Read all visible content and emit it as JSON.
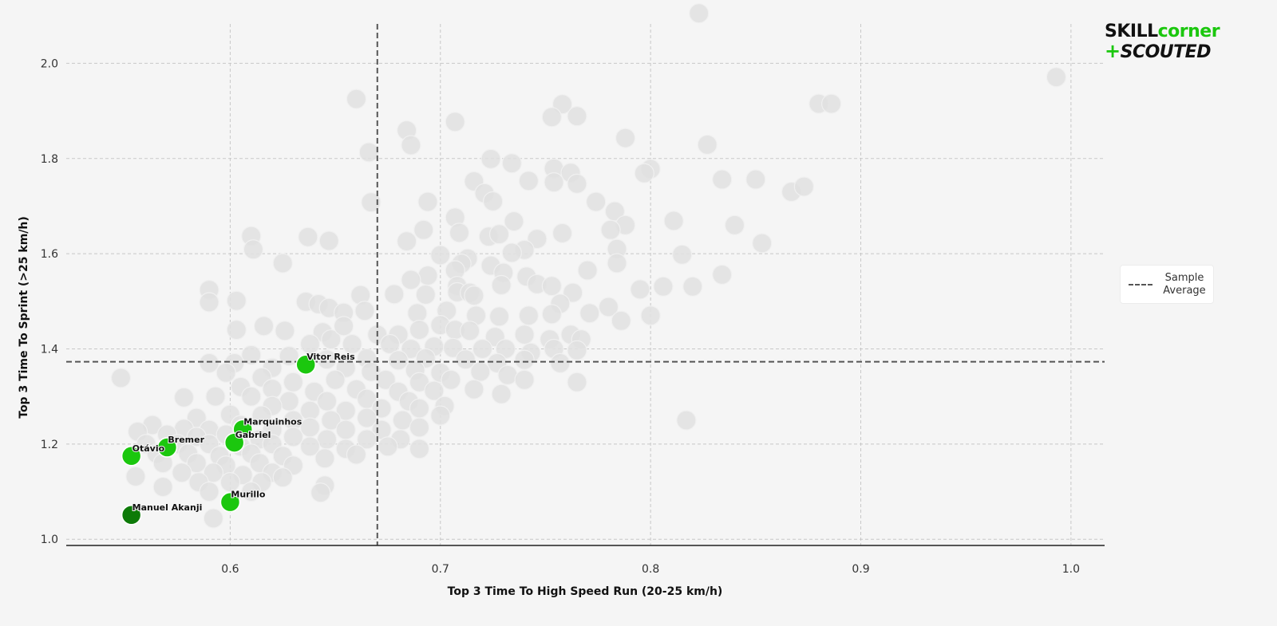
{
  "logo": {
    "skill": "SKILL",
    "corner": "corner",
    "plus": "+",
    "scouted": "SCOUTED"
  },
  "legend": {
    "label_line1": "Sample",
    "label_line2": "Average"
  },
  "colors": {
    "background": "#f5f5f5",
    "sample_point": "#e1e1e1",
    "highlight": "#1bc70e",
    "highlight_dark": "#0d7a08",
    "average_line": "#555555"
  },
  "chart_data": {
    "type": "scatter",
    "xlabel": "Top 3 Time To High Speed Run (20-25 km/h)",
    "ylabel": "Top 3 Time To Sprint (>25 km/h)",
    "xlim": [
      0.522,
      1.016
    ],
    "ylim": [
      0.987,
      2.133
    ],
    "xticks": [
      0.6,
      0.7,
      0.8,
      0.9,
      1.0
    ],
    "yticks": [
      1.0,
      1.2,
      1.4,
      1.6,
      1.8,
      2.0
    ],
    "xtick_labels": [
      "0.6",
      "0.7",
      "0.8",
      "0.9",
      "1.0"
    ],
    "ytick_labels": [
      "1.0",
      "1.2",
      "1.4",
      "1.6",
      "1.8",
      "2.0"
    ],
    "grid": true,
    "legend_position": "right",
    "sample_average": {
      "x": 0.67,
      "y": 1.373,
      "label": "Sample Average"
    },
    "highlighted": [
      {
        "name": "Vitor Reis",
        "x": 0.636,
        "y": 1.367,
        "color": "#1bc70e"
      },
      {
        "name": "Marquinhos",
        "x": 0.606,
        "y": 1.231,
        "color": "#1bc70e"
      },
      {
        "name": "Gabriel",
        "x": 0.602,
        "y": 1.203,
        "color": "#1bc70e"
      },
      {
        "name": "Bremer",
        "x": 0.57,
        "y": 1.193,
        "color": "#1bc70e"
      },
      {
        "name": "Otávio",
        "x": 0.553,
        "y": 1.175,
        "color": "#1bc70e"
      },
      {
        "name": "Murillo",
        "x": 0.6,
        "y": 1.078,
        "color": "#1bc70e"
      },
      {
        "name": "Manuel Akanji",
        "x": 0.553,
        "y": 1.051,
        "color": "#0d7a08"
      }
    ],
    "sample_points": [
      [
        0.823,
        2.105
      ],
      [
        0.993,
        1.971
      ],
      [
        0.66,
        1.925
      ],
      [
        0.758,
        1.914
      ],
      [
        0.753,
        1.887
      ],
      [
        0.765,
        1.889
      ],
      [
        0.88,
        1.915
      ],
      [
        0.886,
        1.915
      ],
      [
        0.707,
        1.877
      ],
      [
        0.684,
        1.859
      ],
      [
        0.686,
        1.828
      ],
      [
        0.827,
        1.829
      ],
      [
        0.788,
        1.843
      ],
      [
        0.666,
        1.813
      ],
      [
        0.724,
        1.799
      ],
      [
        0.734,
        1.79
      ],
      [
        0.8,
        1.778
      ],
      [
        0.797,
        1.769
      ],
      [
        0.754,
        1.779
      ],
      [
        0.762,
        1.77
      ],
      [
        0.765,
        1.747
      ],
      [
        0.754,
        1.75
      ],
      [
        0.834,
        1.756
      ],
      [
        0.85,
        1.756
      ],
      [
        0.716,
        1.752
      ],
      [
        0.742,
        1.753
      ],
      [
        0.867,
        1.73
      ],
      [
        0.873,
        1.741
      ],
      [
        0.721,
        1.727
      ],
      [
        0.774,
        1.709
      ],
      [
        0.783,
        1.689
      ],
      [
        0.667,
        1.708
      ],
      [
        0.694,
        1.709
      ],
      [
        0.725,
        1.71
      ],
      [
        0.707,
        1.676
      ],
      [
        0.735,
        1.668
      ],
      [
        0.811,
        1.669
      ],
      [
        0.84,
        1.66
      ],
      [
        0.788,
        1.66
      ],
      [
        0.781,
        1.65
      ],
      [
        0.692,
        1.65
      ],
      [
        0.709,
        1.644
      ],
      [
        0.723,
        1.636
      ],
      [
        0.728,
        1.641
      ],
      [
        0.746,
        1.631
      ],
      [
        0.758,
        1.643
      ],
      [
        0.853,
        1.622
      ],
      [
        0.61,
        1.637
      ],
      [
        0.611,
        1.609
      ],
      [
        0.637,
        1.635
      ],
      [
        0.647,
        1.627
      ],
      [
        0.684,
        1.626
      ],
      [
        0.74,
        1.608
      ],
      [
        0.734,
        1.602
      ],
      [
        0.784,
        1.61
      ],
      [
        0.784,
        1.58
      ],
      [
        0.815,
        1.598
      ],
      [
        0.625,
        1.58
      ],
      [
        0.7,
        1.597
      ],
      [
        0.713,
        1.59
      ],
      [
        0.71,
        1.579
      ],
      [
        0.724,
        1.575
      ],
      [
        0.707,
        1.565
      ],
      [
        0.694,
        1.554
      ],
      [
        0.73,
        1.56
      ],
      [
        0.741,
        1.552
      ],
      [
        0.77,
        1.565
      ],
      [
        0.834,
        1.556
      ],
      [
        0.686,
        1.545
      ],
      [
        0.708,
        1.532
      ],
      [
        0.729,
        1.534
      ],
      [
        0.746,
        1.536
      ],
      [
        0.753,
        1.532
      ],
      [
        0.795,
        1.525
      ],
      [
        0.806,
        1.531
      ],
      [
        0.82,
        1.531
      ],
      [
        0.59,
        1.524
      ],
      [
        0.59,
        1.498
      ],
      [
        0.603,
        1.501
      ],
      [
        0.662,
        1.513
      ],
      [
        0.678,
        1.515
      ],
      [
        0.693,
        1.514
      ],
      [
        0.708,
        1.519
      ],
      [
        0.714,
        1.518
      ],
      [
        0.716,
        1.512
      ],
      [
        0.763,
        1.518
      ],
      [
        0.757,
        1.495
      ],
      [
        0.78,
        1.488
      ],
      [
        0.636,
        1.499
      ],
      [
        0.642,
        1.494
      ],
      [
        0.647,
        1.486
      ],
      [
        0.654,
        1.476
      ],
      [
        0.664,
        1.48
      ],
      [
        0.689,
        1.475
      ],
      [
        0.703,
        1.48
      ],
      [
        0.717,
        1.47
      ],
      [
        0.728,
        1.468
      ],
      [
        0.742,
        1.47
      ],
      [
        0.753,
        1.473
      ],
      [
        0.771,
        1.475
      ],
      [
        0.786,
        1.459
      ],
      [
        0.8,
        1.47
      ],
      [
        0.616,
        1.448
      ],
      [
        0.626,
        1.438
      ],
      [
        0.603,
        1.44
      ],
      [
        0.644,
        1.435
      ],
      [
        0.648,
        1.42
      ],
      [
        0.654,
        1.448
      ],
      [
        0.67,
        1.43
      ],
      [
        0.68,
        1.43
      ],
      [
        0.69,
        1.44
      ],
      [
        0.7,
        1.45
      ],
      [
        0.707,
        1.44
      ],
      [
        0.714,
        1.438
      ],
      [
        0.726,
        1.425
      ],
      [
        0.74,
        1.43
      ],
      [
        0.752,
        1.42
      ],
      [
        0.762,
        1.43
      ],
      [
        0.767,
        1.42
      ],
      [
        0.638,
        1.41
      ],
      [
        0.658,
        1.41
      ],
      [
        0.676,
        1.41
      ],
      [
        0.686,
        1.4
      ],
      [
        0.697,
        1.405
      ],
      [
        0.706,
        1.402
      ],
      [
        0.72,
        1.4
      ],
      [
        0.731,
        1.4
      ],
      [
        0.743,
        1.392
      ],
      [
        0.754,
        1.4
      ],
      [
        0.765,
        1.397
      ],
      [
        0.61,
        1.387
      ],
      [
        0.628,
        1.385
      ],
      [
        0.646,
        1.378
      ],
      [
        0.665,
        1.38
      ],
      [
        0.68,
        1.376
      ],
      [
        0.693,
        1.38
      ],
      [
        0.712,
        1.378
      ],
      [
        0.727,
        1.37
      ],
      [
        0.74,
        1.377
      ],
      [
        0.757,
        1.37
      ],
      [
        0.59,
        1.37
      ],
      [
        0.602,
        1.37
      ],
      [
        0.62,
        1.36
      ],
      [
        0.655,
        1.36
      ],
      [
        0.667,
        1.352
      ],
      [
        0.688,
        1.355
      ],
      [
        0.7,
        1.35
      ],
      [
        0.719,
        1.352
      ],
      [
        0.732,
        1.345
      ],
      [
        0.548,
        1.339
      ],
      [
        0.598,
        1.35
      ],
      [
        0.615,
        1.34
      ],
      [
        0.63,
        1.33
      ],
      [
        0.65,
        1.335
      ],
      [
        0.674,
        1.335
      ],
      [
        0.69,
        1.33
      ],
      [
        0.705,
        1.335
      ],
      [
        0.74,
        1.335
      ],
      [
        0.765,
        1.33
      ],
      [
        0.605,
        1.32
      ],
      [
        0.62,
        1.316
      ],
      [
        0.64,
        1.31
      ],
      [
        0.66,
        1.315
      ],
      [
        0.68,
        1.31
      ],
      [
        0.697,
        1.312
      ],
      [
        0.716,
        1.315
      ],
      [
        0.729,
        1.305
      ],
      [
        0.593,
        1.3
      ],
      [
        0.578,
        1.298
      ],
      [
        0.61,
        1.3
      ],
      [
        0.628,
        1.29
      ],
      [
        0.646,
        1.29
      ],
      [
        0.665,
        1.295
      ],
      [
        0.685,
        1.29
      ],
      [
        0.702,
        1.28
      ],
      [
        0.62,
        1.28
      ],
      [
        0.638,
        1.27
      ],
      [
        0.655,
        1.27
      ],
      [
        0.672,
        1.275
      ],
      [
        0.69,
        1.275
      ],
      [
        0.7,
        1.26
      ],
      [
        0.584,
        1.255
      ],
      [
        0.6,
        1.262
      ],
      [
        0.615,
        1.26
      ],
      [
        0.63,
        1.25
      ],
      [
        0.648,
        1.25
      ],
      [
        0.665,
        1.255
      ],
      [
        0.682,
        1.25
      ],
      [
        0.817,
        1.25
      ],
      [
        0.563,
        1.24
      ],
      [
        0.578,
        1.232
      ],
      [
        0.59,
        1.23
      ],
      [
        0.605,
        1.24
      ],
      [
        0.62,
        1.23
      ],
      [
        0.638,
        1.235
      ],
      [
        0.655,
        1.23
      ],
      [
        0.672,
        1.23
      ],
      [
        0.69,
        1.235
      ],
      [
        0.556,
        1.226
      ],
      [
        0.57,
        1.22
      ],
      [
        0.584,
        1.215
      ],
      [
        0.598,
        1.22
      ],
      [
        0.614,
        1.21
      ],
      [
        0.63,
        1.215
      ],
      [
        0.646,
        1.21
      ],
      [
        0.665,
        1.21
      ],
      [
        0.681,
        1.21
      ],
      [
        0.56,
        1.2
      ],
      [
        0.575,
        1.2
      ],
      [
        0.59,
        1.2
      ],
      [
        0.605,
        1.195
      ],
      [
        0.62,
        1.2
      ],
      [
        0.638,
        1.195
      ],
      [
        0.655,
        1.19
      ],
      [
        0.675,
        1.195
      ],
      [
        0.69,
        1.19
      ],
      [
        0.565,
        1.18
      ],
      [
        0.58,
        1.18
      ],
      [
        0.595,
        1.175
      ],
      [
        0.61,
        1.18
      ],
      [
        0.625,
        1.175
      ],
      [
        0.645,
        1.17
      ],
      [
        0.66,
        1.178
      ],
      [
        0.568,
        1.16
      ],
      [
        0.584,
        1.16
      ],
      [
        0.598,
        1.155
      ],
      [
        0.614,
        1.16
      ],
      [
        0.63,
        1.155
      ],
      [
        0.577,
        1.14
      ],
      [
        0.592,
        1.14
      ],
      [
        0.606,
        1.135
      ],
      [
        0.62,
        1.14
      ],
      [
        0.555,
        1.132
      ],
      [
        0.585,
        1.12
      ],
      [
        0.6,
        1.12
      ],
      [
        0.615,
        1.12
      ],
      [
        0.625,
        1.13
      ],
      [
        0.568,
        1.11
      ],
      [
        0.59,
        1.1
      ],
      [
        0.61,
        1.1
      ],
      [
        0.645,
        1.113
      ],
      [
        0.643,
        1.098
      ],
      [
        0.592,
        1.044
      ]
    ]
  }
}
